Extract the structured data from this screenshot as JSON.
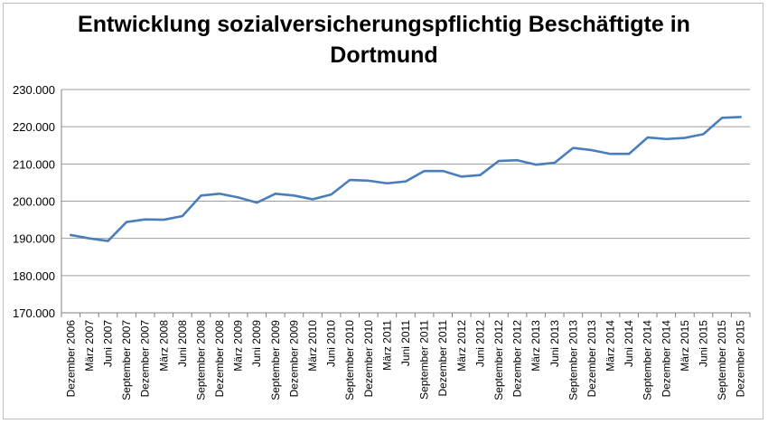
{
  "chart_data": {
    "type": "line",
    "title_lines": [
      "Entwicklung sozialversicherungspflichtig Beschäftigte in",
      "Dortmund"
    ],
    "xlabel": "",
    "ylabel": "",
    "ylim": [
      170000,
      230000
    ],
    "yticks": [
      230000,
      220000,
      210000,
      200000,
      190000,
      180000,
      170000
    ],
    "ytick_labels": [
      "230.000",
      "220.000",
      "210.000",
      "200.000",
      "190.000",
      "180.000",
      "170.000"
    ],
    "grid": "horizontal",
    "legend": "none",
    "line_color": "#4a7ebb",
    "categories": [
      "Dezember 2006",
      "März 2007",
      "Juni 2007",
      "September 2007",
      "Dezember 2007",
      "März 2008",
      "Juni 2008",
      "September 2008",
      "Dezember 2008",
      "März 2009",
      "Juni 2009",
      "September 2009",
      "Dezember 2009",
      "März 2010",
      "Juni 2010",
      "September 2010",
      "Dezember 2010",
      "März 2011",
      "Juni 2011",
      "September 2011",
      "Dezember 2011",
      "März 2012",
      "Juni 2012",
      "September 2012",
      "Dezember 2012",
      "März 2013",
      "Juni 2013",
      "September 2013",
      "Dezember 2013",
      "März 2014",
      "Juni 2014",
      "September 2014",
      "Dezember 2014",
      "März 2015",
      "Juni 2015",
      "September 2015",
      "Dezember 2015"
    ],
    "values": [
      190900,
      190000,
      189300,
      194400,
      195100,
      195000,
      196000,
      201500,
      202000,
      201000,
      199600,
      202000,
      201500,
      200500,
      201800,
      205700,
      205500,
      204800,
      205300,
      208100,
      208100,
      206600,
      207000,
      210800,
      211000,
      209800,
      210300,
      214300,
      213700,
      212700,
      212700,
      217100,
      216700,
      217000,
      218000,
      222400,
      222600
    ]
  }
}
